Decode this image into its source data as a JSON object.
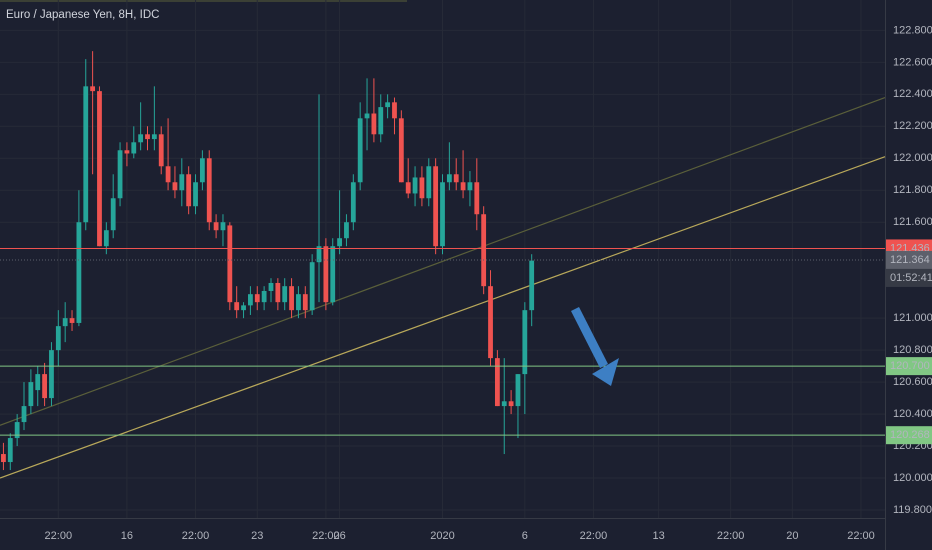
{
  "chart_data": {
    "type": "candlestick",
    "title": "Euro / Japanese Yen, 8H, IDC",
    "up_color": "#26a69a",
    "down_color": "#ef5350",
    "x": [
      0,
      1,
      2,
      3,
      4,
      5,
      6,
      7,
      8,
      9,
      10,
      11,
      12,
      13,
      14,
      15,
      16,
      17,
      18,
      19,
      20,
      21,
      22,
      23,
      24,
      25,
      26,
      27,
      28,
      29,
      30,
      31,
      32,
      33,
      34,
      35,
      36,
      37,
      38,
      39,
      40,
      41,
      42,
      43,
      44,
      45,
      46,
      47,
      48,
      49,
      50,
      51,
      52,
      53,
      54,
      55,
      56,
      57,
      58,
      59,
      60,
      61,
      62,
      63,
      64,
      65,
      66,
      67,
      68,
      69,
      70,
      71,
      72,
      73,
      74,
      75,
      76,
      77
    ],
    "open": [
      120.15,
      120.1,
      120.25,
      120.35,
      120.45,
      120.55,
      120.65,
      120.5,
      120.8,
      120.95,
      121.0,
      120.97,
      121.6,
      122.45,
      122.42,
      121.45,
      121.55,
      121.75,
      122.05,
      122.03,
      122.1,
      122.15,
      122.12,
      122.15,
      121.95,
      121.85,
      121.8,
      121.9,
      121.7,
      121.85,
      122.0,
      121.6,
      121.55,
      121.58,
      121.1,
      121.05,
      121.08,
      121.15,
      121.1,
      121.17,
      121.22,
      121.1,
      121.2,
      121.05,
      121.15,
      121.05,
      121.35,
      121.45,
      121.1,
      121.45,
      121.5,
      121.6,
      121.85,
      122.25,
      122.28,
      122.15,
      122.32,
      122.35,
      122.25,
      121.85,
      121.78,
      121.88,
      121.75,
      121.95,
      121.45,
      121.85,
      121.9,
      121.85,
      121.8,
      121.85,
      121.65,
      121.2,
      120.75,
      120.45,
      120.48,
      120.45,
      120.65,
      121.05
    ],
    "high": [
      120.22,
      120.28,
      120.4,
      120.6,
      120.68,
      120.7,
      120.72,
      120.85,
      121.05,
      121.1,
      121.05,
      121.8,
      122.62,
      122.67,
      122.45,
      121.6,
      121.9,
      122.1,
      122.1,
      122.2,
      122.35,
      122.2,
      122.45,
      122.2,
      122.25,
      121.95,
      122.0,
      121.95,
      121.9,
      122.05,
      122.05,
      121.65,
      121.65,
      121.6,
      121.2,
      121.1,
      121.2,
      121.2,
      121.2,
      121.25,
      121.25,
      121.25,
      121.25,
      121.2,
      121.2,
      121.4,
      122.4,
      121.5,
      121.5,
      121.8,
      121.65,
      121.9,
      122.35,
      122.5,
      122.5,
      122.4,
      122.4,
      122.38,
      122.3,
      122.0,
      121.95,
      121.95,
      122.0,
      122.0,
      121.9,
      122.1,
      122.0,
      122.05,
      121.92,
      122.0,
      121.7,
      121.3,
      120.8,
      120.75,
      120.55,
      120.65,
      121.1,
      121.4
    ],
    "low": [
      120.05,
      120.05,
      120.2,
      120.3,
      120.4,
      120.45,
      120.45,
      120.45,
      120.7,
      120.85,
      120.92,
      120.95,
      121.55,
      121.9,
      121.45,
      121.4,
      121.5,
      121.7,
      121.95,
      122.0,
      122.05,
      122.05,
      122.05,
      121.9,
      121.8,
      121.75,
      121.7,
      121.65,
      121.65,
      121.8,
      121.55,
      121.5,
      121.45,
      121.05,
      121.0,
      121.0,
      121.02,
      121.05,
      121.05,
      121.1,
      121.05,
      121.05,
      121.0,
      121.0,
      121.0,
      121.02,
      121.1,
      121.05,
      121.08,
      121.4,
      121.45,
      121.55,
      121.8,
      122.05,
      122.1,
      122.1,
      122.25,
      122.15,
      121.85,
      121.75,
      121.7,
      121.7,
      121.7,
      121.4,
      121.4,
      121.8,
      121.8,
      121.75,
      121.7,
      121.55,
      121.15,
      120.7,
      120.45,
      120.15,
      120.4,
      120.25,
      120.4,
      120.95
    ],
    "close": [
      120.1,
      120.25,
      120.35,
      120.45,
      120.6,
      120.65,
      120.5,
      120.8,
      120.95,
      121.0,
      120.97,
      121.6,
      122.45,
      122.42,
      121.45,
      121.55,
      121.75,
      122.05,
      122.03,
      122.1,
      122.15,
      122.12,
      122.15,
      121.95,
      121.85,
      121.8,
      121.9,
      121.7,
      121.85,
      122.0,
      121.6,
      121.55,
      121.6,
      121.1,
      121.05,
      121.08,
      121.15,
      121.1,
      121.17,
      121.22,
      121.1,
      121.2,
      121.05,
      121.15,
      121.05,
      121.35,
      121.45,
      121.1,
      121.45,
      121.5,
      121.6,
      121.85,
      122.25,
      122.28,
      122.15,
      122.32,
      122.35,
      122.25,
      121.85,
      121.78,
      121.88,
      121.75,
      121.95,
      121.45,
      121.85,
      121.9,
      121.85,
      121.8,
      121.85,
      121.65,
      121.2,
      120.75,
      120.45,
      120.48,
      120.45,
      120.65,
      121.05,
      121.36
    ],
    "xlim": [
      -0.5,
      128.5
    ],
    "xticks": [
      {
        "value": 8,
        "label": "22:00"
      },
      {
        "value": 18,
        "label": "16"
      },
      {
        "value": 28,
        "label": "22:00"
      },
      {
        "value": 37,
        "label": "23"
      },
      {
        "value": 47,
        "label": "22:00"
      },
      {
        "value": 49,
        "label": "26"
      },
      {
        "value": 64,
        "label": "2020"
      },
      {
        "value": 76,
        "label": "6"
      },
      {
        "value": 86,
        "label": "22:00"
      },
      {
        "value": 95.5,
        "label": "13"
      },
      {
        "value": 106,
        "label": "22:00"
      },
      {
        "value": 115,
        "label": "20"
      },
      {
        "value": 125,
        "label": "22:00"
      }
    ],
    "ylim": [
      119.75,
      122.99
    ],
    "yticks": [
      {
        "value": 122.8,
        "label": "122.800"
      },
      {
        "value": 122.6,
        "label": "122.600"
      },
      {
        "value": 122.4,
        "label": "122.400"
      },
      {
        "value": 122.2,
        "label": "122.200"
      },
      {
        "value": 122.0,
        "label": "122.000"
      },
      {
        "value": 121.8,
        "label": "121.800"
      },
      {
        "value": 121.6,
        "label": "121.600"
      },
      {
        "value": 121.0,
        "label": "121.000"
      },
      {
        "value": 120.8,
        "label": "120.800"
      },
      {
        "value": 120.6,
        "label": "120.600"
      },
      {
        "value": 120.4,
        "label": "120.400"
      },
      {
        "value": 120.2,
        "label": "120.200"
      },
      {
        "value": 120.0,
        "label": "120.000"
      },
      {
        "value": 119.8,
        "label": "119.800"
      }
    ],
    "levels": [
      {
        "value": 121.436,
        "label": "121.436",
        "color": "#ef5350",
        "text_color": "#ffffff"
      },
      {
        "value": 121.364,
        "label": "121.364",
        "color": "#5d606b",
        "text_color": "#ffffff",
        "dashed": true
      },
      {
        "value": 120.7,
        "label": "120.700",
        "color": "#81c784",
        "text_color": "#131722"
      },
      {
        "value": 120.268,
        "label": "120.268",
        "color": "#81c784",
        "text_color": "#131722"
      }
    ],
    "timer": "01:52:41",
    "trendlines": [
      {
        "color": "#5a5f3a",
        "x": [
          -0.5,
          128.5
        ],
        "y": [
          120.33,
          122.38
        ]
      },
      {
        "color": "#b8a85a",
        "x": [
          -0.5,
          128.5
        ],
        "y": [
          120.0,
          122.01
        ]
      }
    ]
  }
}
